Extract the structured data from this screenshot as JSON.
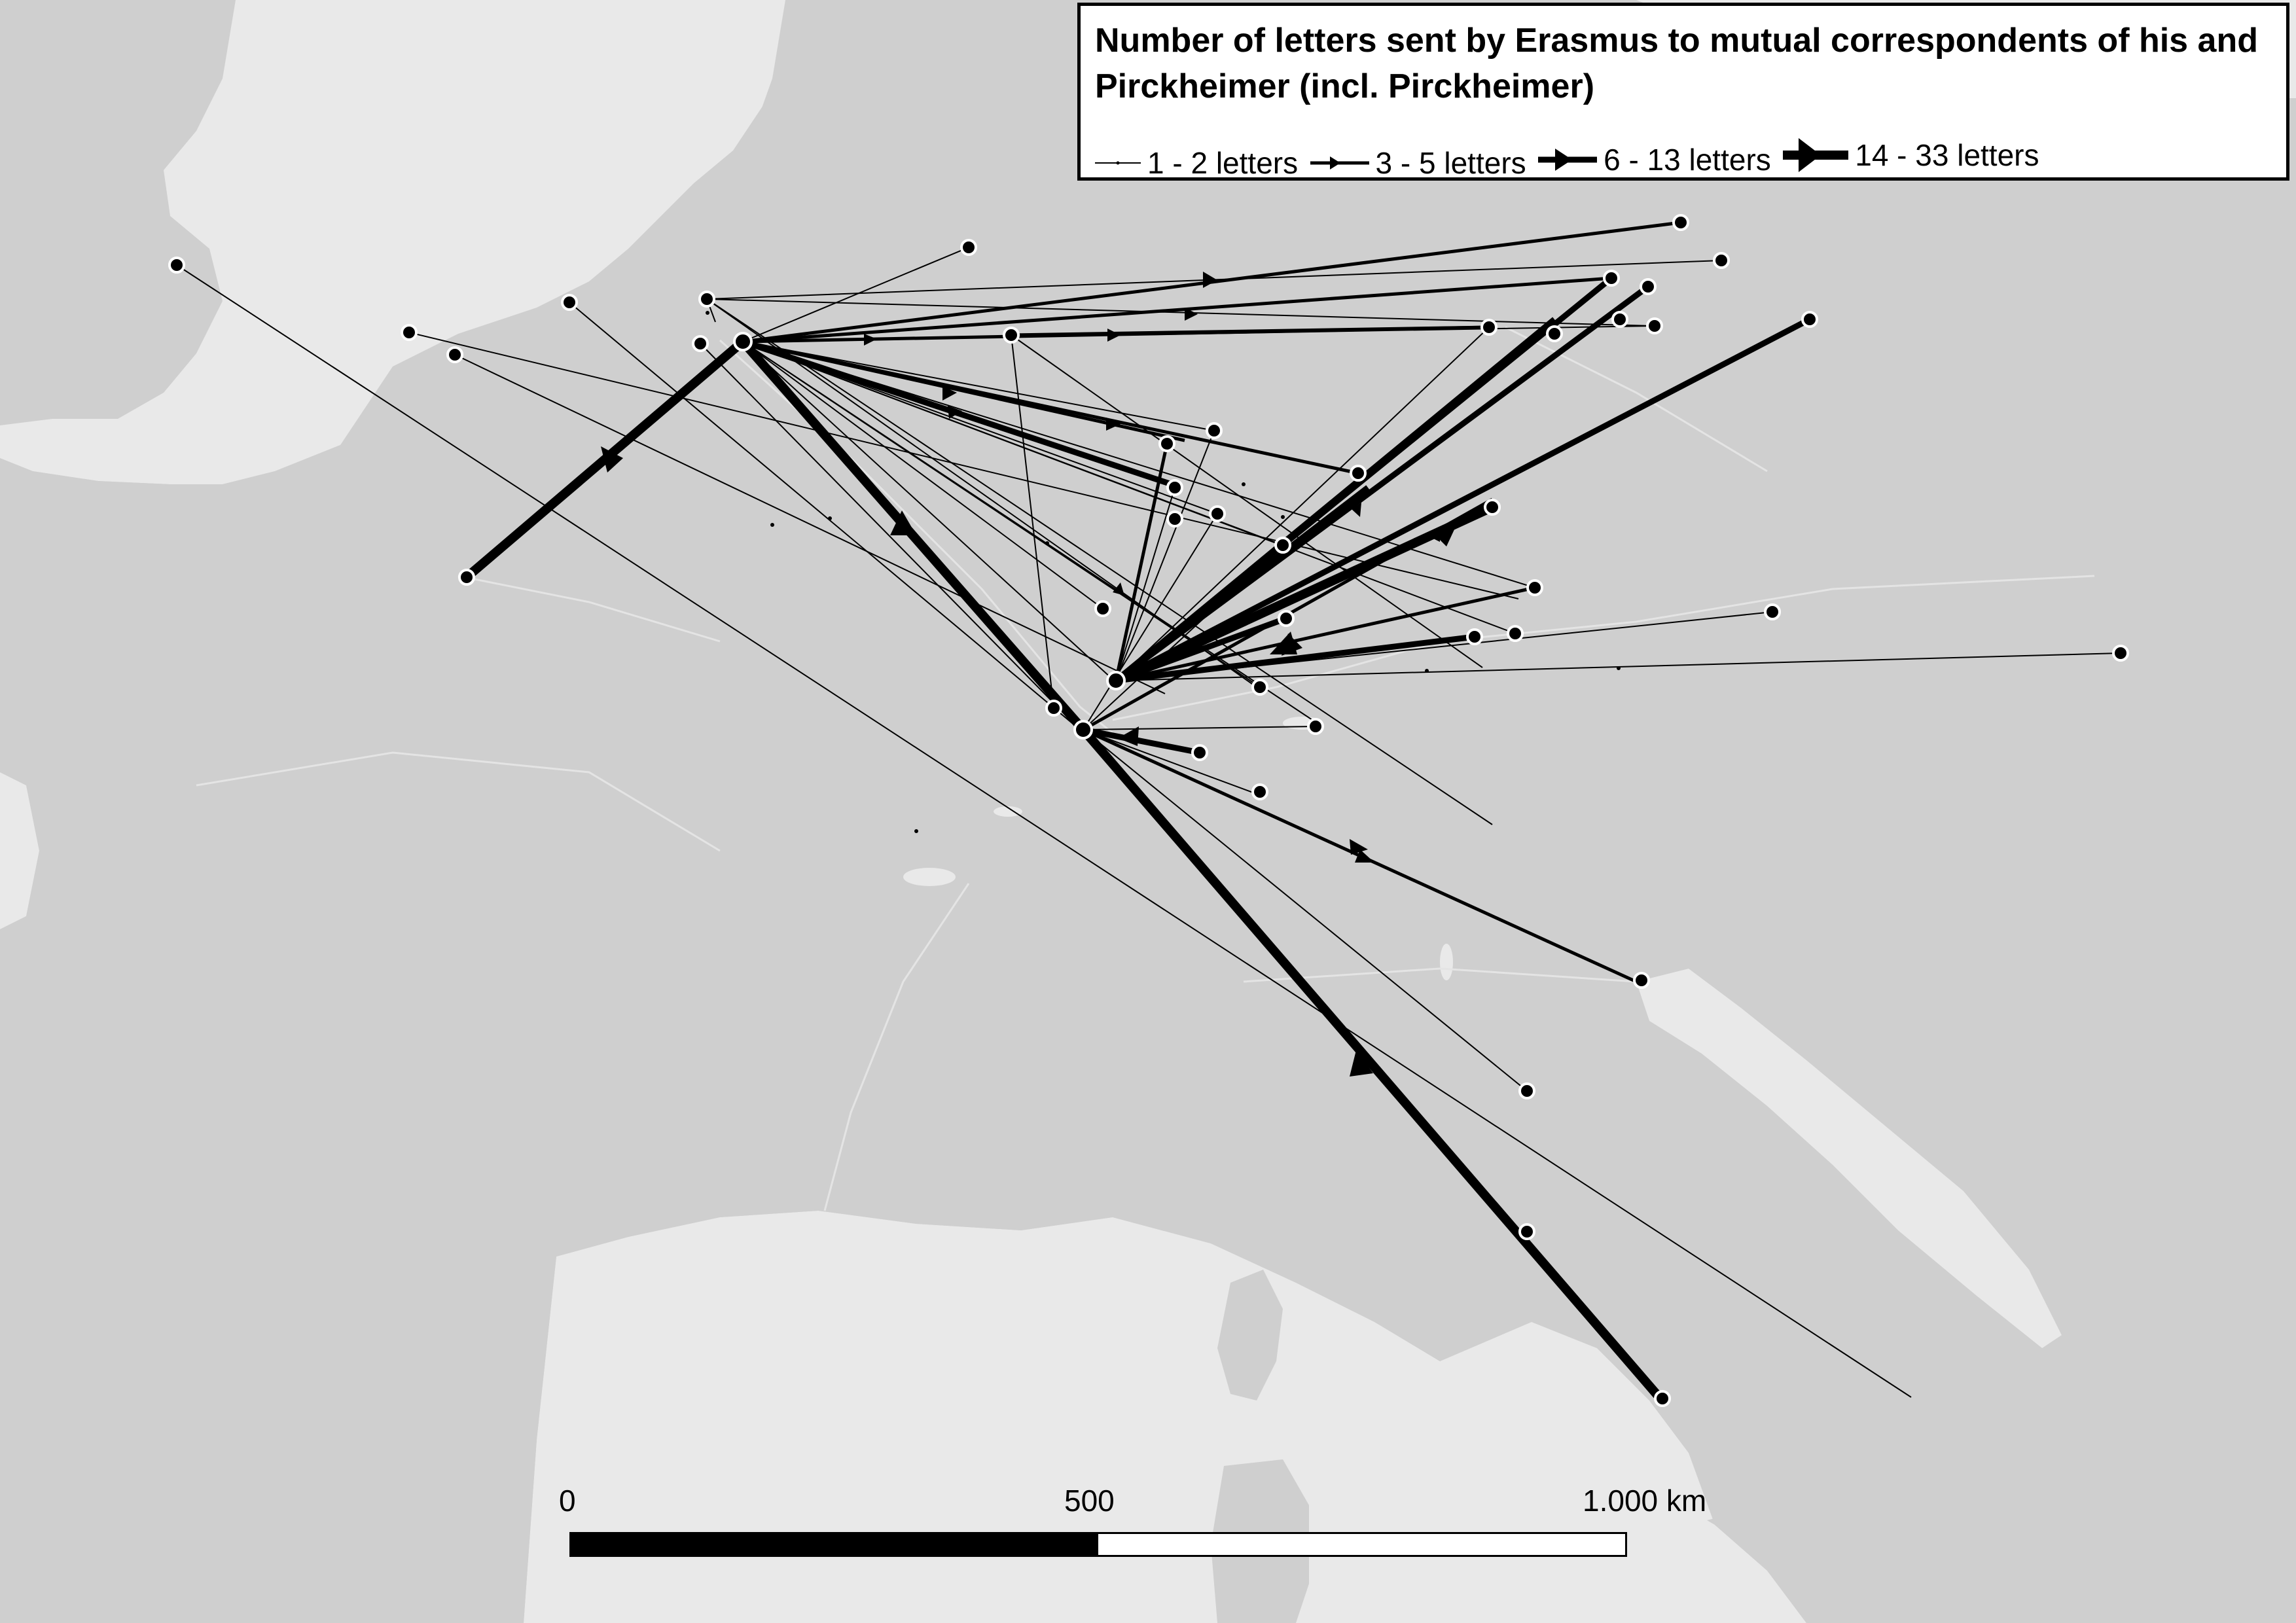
{
  "map": {
    "title": "Number of letters sent by Erasmus to mutual correspondents of his and Pirckheimer (incl. Pirckheimer)",
    "land_color": "#cfcfcf",
    "sea_color": "#e9e9e9",
    "line_color": "#000000",
    "legend": {
      "items": [
        {
          "label": "1 - 2 letters",
          "stroke": 2
        },
        {
          "label": "3 - 5 letters",
          "stroke": 5
        },
        {
          "label": "6 - 13 letters",
          "stroke": 9
        },
        {
          "label": "14 - 33 letters",
          "stroke": 14
        }
      ]
    },
    "scale": {
      "labels": [
        "0",
        "500",
        "1.000 km"
      ]
    }
  }
}
